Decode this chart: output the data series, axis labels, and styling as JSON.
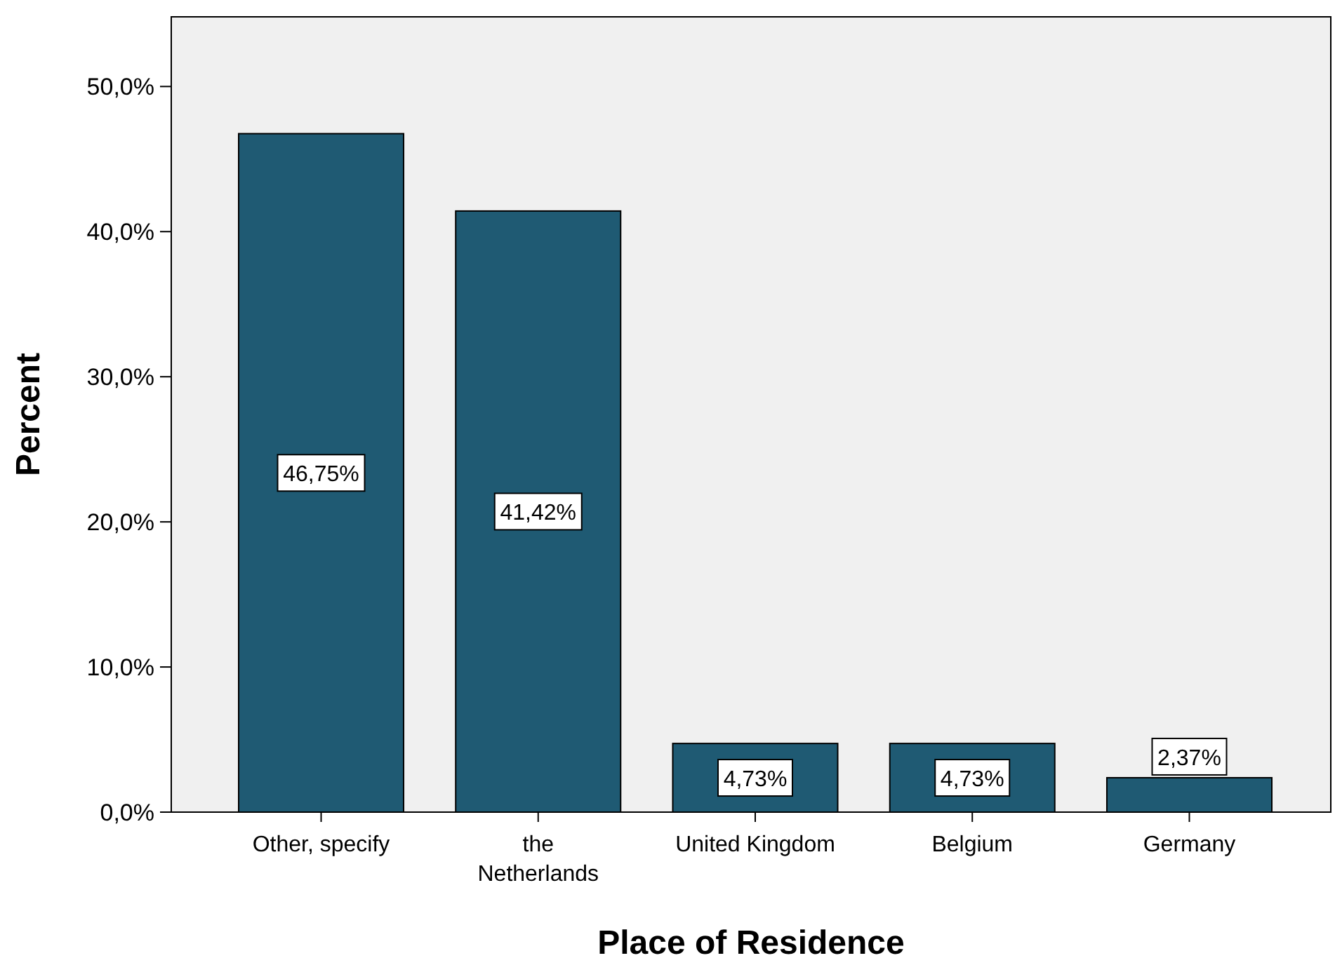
{
  "chart_data": {
    "type": "bar",
    "xlabel": "Place of Residence",
    "ylabel": "Percent",
    "categories": [
      "Other, specify",
      "the Netherlands",
      "United Kingdom",
      "Belgium",
      "Germany"
    ],
    "values": [
      46.75,
      41.42,
      4.73,
      4.73,
      2.37
    ],
    "value_labels": [
      "46,75%",
      "41,42%",
      "4,73%",
      "4,73%",
      "2,37%"
    ],
    "color": "#1f5a73",
    "ylim": [
      0,
      54.8
    ],
    "yticks": [
      {
        "value": 0,
        "label": "0,0%"
      },
      {
        "value": 10,
        "label": "10,0%"
      },
      {
        "value": 20,
        "label": "20,0%"
      },
      {
        "value": 30,
        "label": "30,0%"
      },
      {
        "value": 40,
        "label": "40,0%"
      },
      {
        "value": 50,
        "label": "50,0%"
      }
    ],
    "grid": false
  }
}
